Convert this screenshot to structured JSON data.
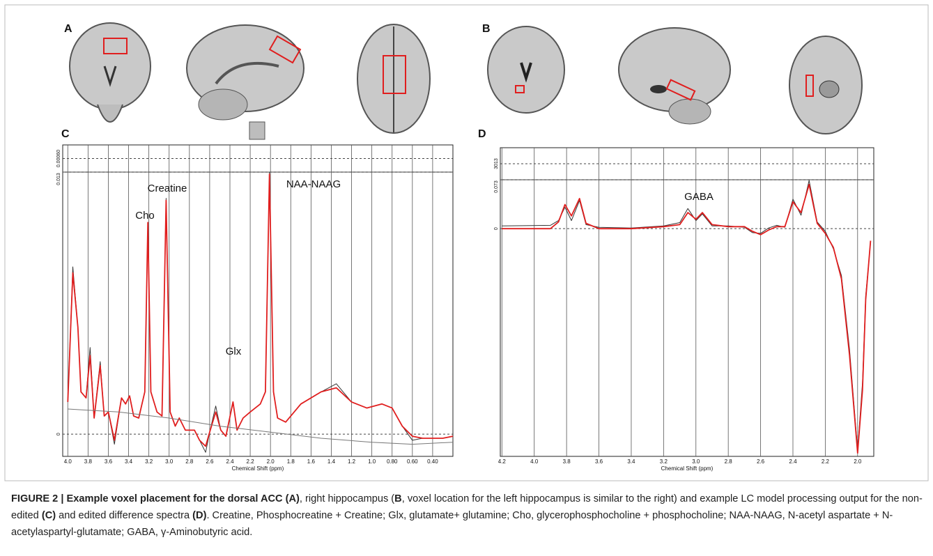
{
  "panel_labels": [
    "A",
    "B",
    "C",
    "D"
  ],
  "caption": [
    {
      "text": "FIGURE 2 | Example voxel placement for the dorsal ACC (A)",
      "bold": true
    },
    {
      "text": ", right hippocampus (",
      "bold": false
    },
    {
      "text": "B",
      "bold": true
    },
    {
      "text": ", voxel location for the left hippocampus is similar to the right) and example LC model processing output for the non-edited ",
      "bold": false
    },
    {
      "text": "(C)",
      "bold": true
    },
    {
      "text": " and edited difference spectra ",
      "bold": false
    },
    {
      "text": "(D)",
      "bold": true
    },
    {
      "text": ". Creatine, Phosphocreatine + Creatine; Glx, glutamate+ glutamine; Cho, glycerophosphocholine + phosphocholine; NAA-NAAG, N-acetyl aspartate + N-acetylaspartyl-glutamate; GABA, γ-Aminobutyric acid.",
      "bold": false
    }
  ],
  "chart_data": [
    {
      "type": "line",
      "x_label": "Chemical Shift (ppm)",
      "residual_label": "0.00060",
      "annotations": [
        "Cho",
        "Creatine",
        "NAA-NAAG",
        "Glx"
      ],
      "xlim": [
        4.05,
        0.2
      ],
      "xticks": [
        {
          "value": 4,
          "label": "4.0"
        },
        3.8,
        3.6,
        3.4,
        3.2,
        {
          "value": 3,
          "label": "3.0"
        },
        2.8,
        2.6,
        2.4,
        2.2,
        {
          "value": 2,
          "label": "2.0"
        },
        1.8,
        1.6,
        1.4,
        1.2,
        {
          "value": 1,
          "label": "1.0"
        },
        {
          "value": 0.8,
          "label": "0.80"
        },
        {
          "value": 0.6,
          "label": "0.60"
        },
        {
          "value": 0.4,
          "label": "0.40"
        }
      ],
      "ylim": [
        -0.0011,
        0.013
      ],
      "yticks": [
        0,
        0.013
      ],
      "grid": true,
      "x": [
        4.0,
        3.95,
        3.9,
        3.87,
        3.82,
        3.78,
        3.74,
        3.68,
        3.64,
        3.6,
        3.54,
        3.47,
        3.43,
        3.39,
        3.35,
        3.3,
        3.24,
        3.21,
        3.18,
        3.12,
        3.07,
        3.03,
        2.99,
        2.94,
        2.9,
        2.84,
        2.75,
        2.7,
        2.64,
        2.6,
        2.54,
        2.49,
        2.44,
        2.37,
        2.33,
        2.27,
        2.2,
        2.1,
        2.05,
        2.01,
        1.97,
        1.93,
        1.85,
        1.7,
        1.5,
        1.35,
        1.2,
        1.05,
        0.9,
        0.8,
        0.7,
        0.6,
        0.5,
        0.3,
        0.2
      ],
      "series": [
        {
          "color": "#333333",
          "values": [
            0.0016,
            0.0083,
            0.0053,
            0.0021,
            0.0018,
            0.0043,
            0.0008,
            0.0036,
            0.0009,
            0.0011,
            -0.0005,
            0.0018,
            0.0015,
            0.0019,
            0.0009,
            0.0008,
            0.0021,
            0.0104,
            0.0021,
            0.0011,
            0.0009,
            0.0117,
            0.0011,
            0.0004,
            0.0008,
            0.0002,
            0.0002,
            -0.0003,
            -0.0009,
            0.0001,
            0.0014,
            0.0002,
            -0.0001,
            0.0016,
            0.0002,
            0.0008,
            0.0011,
            0.0015,
            0.0021,
            0.013,
            0.0021,
            0.0008,
            0.0006,
            0.0015,
            0.0021,
            0.0025,
            0.0016,
            0.0013,
            0.0015,
            0.0013,
            0.0004,
            -0.0003,
            -0.0002,
            -0.0002,
            -0.0001
          ]
        },
        {
          "color": "#e01e1e",
          "values": [
            0.0016,
            0.008,
            0.0053,
            0.0021,
            0.0018,
            0.0039,
            0.0008,
            0.0034,
            0.0009,
            0.0011,
            -0.0003,
            0.0018,
            0.0015,
            0.0019,
            0.0009,
            0.0008,
            0.0021,
            0.0105,
            0.0021,
            0.0011,
            0.0009,
            0.0116,
            0.0011,
            0.0004,
            0.0008,
            0.0002,
            0.0002,
            -0.0003,
            -0.0006,
            0.0001,
            0.0011,
            0.0002,
            -0.0001,
            0.0016,
            0.0002,
            0.0008,
            0.0011,
            0.0015,
            0.0021,
            0.0129,
            0.0021,
            0.0008,
            0.0006,
            0.0015,
            0.0021,
            0.0023,
            0.0016,
            0.0013,
            0.0015,
            0.0013,
            0.0004,
            -0.0001,
            -0.0002,
            -0.0002,
            -0.0001
          ]
        },
        {
          "color": "#777777",
          "x": [
            4.0,
            3.5,
            3.0,
            2.5,
            2.0,
            1.5,
            1.0,
            0.6,
            0.2
          ],
          "values": [
            0.00125,
            0.0011,
            0.0008,
            0.0004,
            0.0001,
            -0.0002,
            -0.0004,
            -0.0005,
            -0.0004
          ]
        }
      ]
    },
    {
      "type": "line",
      "x_label": "Chemical Shift (ppm)",
      "residual_label": "3013",
      "annotations": [
        "GABA"
      ],
      "xlim": [
        4.21,
        1.9
      ],
      "xticks": [
        4.2,
        {
          "value": 4,
          "label": "4.0"
        },
        3.8,
        3.6,
        3.4,
        3.2,
        {
          "value": 3,
          "label": "3.0"
        },
        2.8,
        2.6,
        2.4,
        2.2,
        {
          "value": 2,
          "label": "2.0"
        }
      ],
      "ylim": [
        -0.34,
        0.073
      ],
      "yticks": [
        0,
        0.073
      ],
      "grid": true,
      "x": [
        4.2,
        3.9,
        3.85,
        3.81,
        3.77,
        3.72,
        3.68,
        3.6,
        3.4,
        3.2,
        3.1,
        3.05,
        3.0,
        2.96,
        2.9,
        2.8,
        2.7,
        2.65,
        2.6,
        2.55,
        2.5,
        2.45,
        2.4,
        2.35,
        2.3,
        2.25,
        2.2,
        2.15,
        2.1,
        2.05,
        2.0,
        1.97,
        1.95,
        1.92
      ],
      "series": [
        {
          "color": "#333333",
          "values": [
            0.004,
            0.005,
            0.012,
            0.032,
            0.012,
            0.042,
            0.006,
            0.002,
            0.001,
            0.004,
            0.009,
            0.03,
            0.012,
            0.022,
            0.004,
            0.004,
            0.002,
            -0.006,
            -0.007,
            0.001,
            0.005,
            0.002,
            0.044,
            0.02,
            0.072,
            0.01,
            -0.004,
            -0.03,
            -0.07,
            -0.18,
            -0.33,
            -0.23,
            -0.1,
            -0.02
          ]
        },
        {
          "color": "#e01e1e",
          "values": [
            0,
            0,
            0.01,
            0.036,
            0.019,
            0.045,
            0.008,
            0,
            0,
            0.003,
            0.006,
            0.024,
            0.014,
            0.024,
            0.006,
            0.003,
            0.003,
            -0.004,
            -0.009,
            -0.002,
            0.003,
            0.003,
            0.04,
            0.024,
            0.066,
            0.008,
            -0.007,
            -0.028,
            -0.075,
            -0.189,
            -0.335,
            -0.241,
            -0.106,
            -0.018
          ]
        }
      ]
    }
  ]
}
